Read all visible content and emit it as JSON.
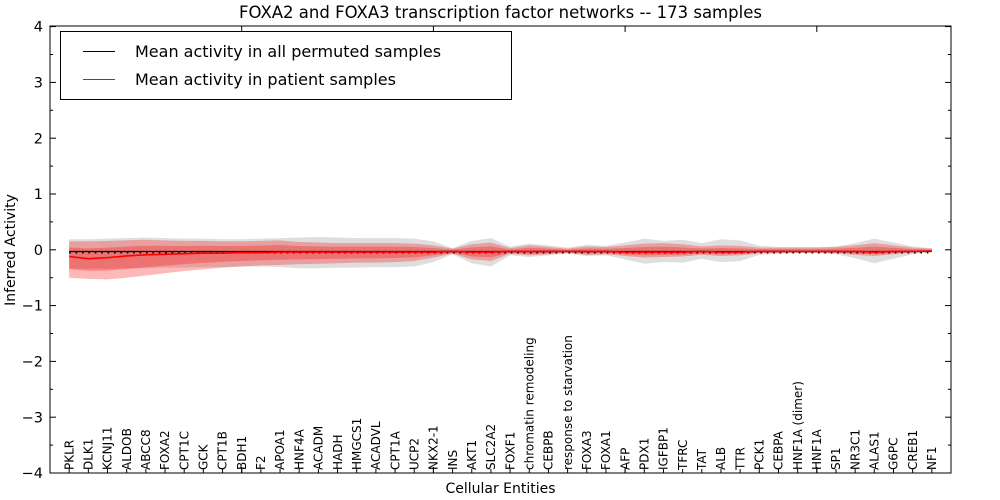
{
  "figure": {
    "title": "FOXA2 and FOXA3 transcription factor networks -- 173 samples",
    "xlabel": "Cellular Entities",
    "ylabel": "Inferred Activity"
  },
  "legend": {
    "entries": [
      {
        "label": "Mean activity in all permuted samples",
        "color": "#000000"
      },
      {
        "label": "Mean activity in patient samples",
        "color": "#ff0000"
      }
    ],
    "position": "upper left",
    "border_color": "#000000"
  },
  "chart_data": {
    "type": "line",
    "title": "FOXA2 and FOXA3 transcription factor networks -- 173 samples",
    "xlabel": "Cellular Entities",
    "ylabel": "Inferred Activity",
    "ylim": [
      -4,
      4
    ],
    "yticks": [
      -4,
      -3,
      -2,
      -1,
      0,
      1,
      2,
      3,
      4
    ],
    "ytick_labels": [
      "−4",
      "−3",
      "−2",
      "−1",
      "0",
      "1",
      "2",
      "3",
      "4"
    ],
    "x_major_tick_positions": [
      10,
      20,
      30,
      40
    ],
    "grid": false,
    "legend_position": "upper left",
    "categories": [
      "PKLR",
      "DLK1",
      "KCNJ11",
      "ALDOB",
      "ABCC8",
      "FOXA2",
      "CPT1C",
      "GCK",
      "CPT1B",
      "BDH1",
      "F2",
      "APOA1",
      "HNF4A",
      "ACADM",
      "HADH",
      "HMGCS1",
      "ACADVL",
      "CPT1A",
      "UCP2",
      "NKX2-1",
      "INS",
      "AKT1",
      "SLC2A2",
      "FOXF1",
      "chromatin remodeling",
      "CEBPB",
      "response to starvation",
      "FOXA3",
      "FOXA1",
      "AFP",
      "PDX1",
      "IGFBP1",
      "TFRC",
      "TAT",
      "ALB",
      "TTR",
      "PCK1",
      "CEBPA",
      "HNF1A (dimer)",
      "HNF1A",
      "SP1",
      "NR3C1",
      "ALAS1",
      "G6PC",
      "CREB1",
      "NF1"
    ],
    "series": [
      {
        "name": "Mean activity in all permuted samples",
        "color": "#000000",
        "style": "solid-with-dots",
        "values": [
          -0.03,
          -0.03,
          -0.03,
          -0.03,
          -0.03,
          -0.03,
          -0.03,
          -0.03,
          -0.03,
          -0.03,
          -0.03,
          -0.03,
          -0.03,
          -0.03,
          -0.03,
          -0.03,
          -0.03,
          -0.03,
          -0.03,
          -0.03,
          -0.03,
          -0.03,
          -0.03,
          -0.03,
          -0.03,
          -0.03,
          -0.03,
          -0.03,
          -0.03,
          -0.03,
          -0.03,
          -0.03,
          -0.03,
          -0.03,
          -0.03,
          -0.03,
          -0.03,
          -0.03,
          -0.03,
          -0.03,
          -0.03,
          -0.03,
          -0.03,
          -0.03,
          -0.03,
          -0.03
        ]
      },
      {
        "name": "Mean activity in patient samples",
        "color": "#ff0000",
        "style": "solid",
        "values": [
          -0.12,
          -0.16,
          -0.14,
          -0.11,
          -0.09,
          -0.08,
          -0.07,
          -0.06,
          -0.06,
          -0.05,
          -0.05,
          -0.04,
          -0.04,
          -0.04,
          -0.04,
          -0.04,
          -0.04,
          -0.04,
          -0.04,
          -0.04,
          -0.03,
          -0.04,
          -0.04,
          -0.03,
          -0.03,
          -0.03,
          -0.03,
          -0.03,
          -0.03,
          -0.04,
          -0.04,
          -0.04,
          -0.04,
          -0.03,
          -0.04,
          -0.04,
          -0.03,
          -0.03,
          -0.03,
          -0.03,
          -0.03,
          -0.03,
          -0.04,
          -0.03,
          -0.03,
          -0.02
        ]
      }
    ],
    "bands": [
      {
        "name": "permuted-std-band",
        "color": "#000000",
        "opacity": 0.13,
        "upper": [
          0.19,
          0.19,
          0.2,
          0.21,
          0.22,
          0.21,
          0.2,
          0.2,
          0.19,
          0.19,
          0.2,
          0.21,
          0.22,
          0.23,
          0.22,
          0.21,
          0.21,
          0.21,
          0.2,
          0.15,
          0.03,
          0.16,
          0.21,
          0.06,
          0.11,
          0.08,
          0.04,
          0.09,
          0.07,
          0.13,
          0.2,
          0.16,
          0.18,
          0.12,
          0.19,
          0.17,
          0.07,
          0.05,
          0.05,
          0.05,
          0.06,
          0.12,
          0.2,
          0.13,
          0.06,
          0.03
        ],
        "lower": [
          -0.33,
          -0.34,
          -0.34,
          -0.33,
          -0.33,
          -0.32,
          -0.32,
          -0.31,
          -0.31,
          -0.3,
          -0.3,
          -0.31,
          -0.33,
          -0.33,
          -0.32,
          -0.32,
          -0.31,
          -0.31,
          -0.3,
          -0.22,
          -0.08,
          -0.24,
          -0.3,
          -0.1,
          -0.13,
          -0.1,
          -0.07,
          -0.11,
          -0.1,
          -0.17,
          -0.25,
          -0.22,
          -0.23,
          -0.16,
          -0.22,
          -0.2,
          -0.09,
          -0.07,
          -0.06,
          -0.06,
          -0.08,
          -0.15,
          -0.24,
          -0.16,
          -0.08,
          -0.04
        ]
      },
      {
        "name": "patient-std-band",
        "color": "#ff0000",
        "opacity": 0.28,
        "upper": [
          0.15,
          0.15,
          0.16,
          0.17,
          0.18,
          0.17,
          0.16,
          0.16,
          0.15,
          0.15,
          0.16,
          0.17,
          0.14,
          0.13,
          0.12,
          0.12,
          0.12,
          0.12,
          0.11,
          0.08,
          0.02,
          0.1,
          0.13,
          0.03,
          0.08,
          0.05,
          0.02,
          0.06,
          0.05,
          0.08,
          0.11,
          0.12,
          0.1,
          0.06,
          0.08,
          0.07,
          0.04,
          0.04,
          0.04,
          0.04,
          0.05,
          0.08,
          0.12,
          0.08,
          0.04,
          0.02
        ],
        "lower": [
          -0.5,
          -0.52,
          -0.53,
          -0.5,
          -0.46,
          -0.42,
          -0.38,
          -0.35,
          -0.32,
          -0.3,
          -0.28,
          -0.27,
          -0.26,
          -0.25,
          -0.24,
          -0.23,
          -0.23,
          -0.22,
          -0.2,
          -0.14,
          -0.07,
          -0.17,
          -0.2,
          -0.07,
          -0.1,
          -0.08,
          -0.05,
          -0.09,
          -0.08,
          -0.11,
          -0.14,
          -0.13,
          -0.12,
          -0.09,
          -0.11,
          -0.1,
          -0.06,
          -0.05,
          -0.05,
          -0.05,
          -0.06,
          -0.09,
          -0.11,
          -0.08,
          -0.05,
          -0.03
        ]
      },
      {
        "name": "patient-inner-band",
        "color": "#ff0000",
        "opacity": 0.28,
        "derived_from": "patient-std-band",
        "scale": 0.6
      }
    ]
  }
}
